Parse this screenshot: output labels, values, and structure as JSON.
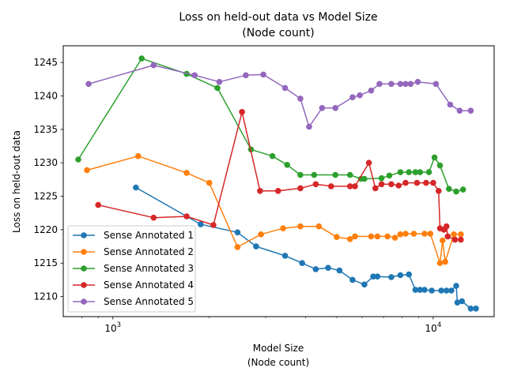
{
  "chart_data": {
    "type": "line",
    "title": "Loss on held-out data vs Model Size",
    "subtitle": "(Node count)",
    "xlabel": "Model Size",
    "xlabel_sub": "(Node count)",
    "ylabel": "Loss on held-out data",
    "xscale": "log",
    "xlim": [
      700,
      15500
    ],
    "ylim": [
      1207,
      1247.5
    ],
    "x_ticks": [
      {
        "value": 1000,
        "base": "10",
        "exp": "3"
      },
      {
        "value": 10000,
        "base": "10",
        "exp": "4"
      }
    ],
    "y_ticks": [
      1210,
      1215,
      1220,
      1225,
      1230,
      1235,
      1240,
      1245
    ],
    "grid": false,
    "legend_position": "lower-left",
    "series": [
      {
        "name": "Sense Annotated 1",
        "color": "#1f77b4",
        "x": [
          1180,
          1880,
          2450,
          2800,
          3450,
          3900,
          4300,
          4700,
          5100,
          5600,
          6100,
          6500,
          6700,
          7400,
          7900,
          8400,
          8800,
          9100,
          9400,
          9900,
          10600,
          11000,
          11400,
          11800,
          11900,
          12300,
          13100,
          13600
        ],
        "y": [
          1226.3,
          1220.8,
          1219.6,
          1217.5,
          1216.1,
          1215.0,
          1214.1,
          1214.3,
          1213.9,
          1212.5,
          1211.8,
          1213.0,
          1213.0,
          1212.9,
          1213.2,
          1213.3,
          1211.0,
          1211.0,
          1211.0,
          1210.9,
          1210.9,
          1210.9,
          1210.9,
          1211.6,
          1209.1,
          1209.3,
          1208.2,
          1208.2
        ]
      },
      {
        "name": "Sense Annotated 2",
        "color": "#ff7f0e",
        "x": [
          830,
          1200,
          1700,
          2000,
          2450,
          2900,
          3400,
          3850,
          4400,
          5000,
          5500,
          5700,
          6400,
          6700,
          7200,
          7600,
          7900,
          8200,
          8700,
          9400,
          9800,
          10500,
          10700,
          10900,
          11600,
          12200
        ],
        "y": [
          1228.9,
          1231.0,
          1228.5,
          1227.0,
          1217.4,
          1219.3,
          1220.2,
          1220.5,
          1220.5,
          1218.9,
          1218.6,
          1219.0,
          1219.0,
          1219.0,
          1219.0,
          1218.8,
          1219.3,
          1219.4,
          1219.4,
          1219.4,
          1219.4,
          1215.0,
          1218.4,
          1215.2,
          1219.3,
          1219.3
        ]
      },
      {
        "name": "Sense Annotated 3",
        "color": "#2ca02c",
        "x": [
          780,
          1230,
          1700,
          2120,
          2700,
          3150,
          3500,
          3850,
          4250,
          4950,
          5500,
          5950,
          6100,
          6900,
          7300,
          7900,
          8400,
          8800,
          9100,
          9700,
          10100,
          10500,
          11200,
          11800,
          12400
        ],
        "y": [
          1230.5,
          1245.6,
          1243.3,
          1241.2,
          1232.0,
          1231.0,
          1229.7,
          1228.2,
          1228.2,
          1228.2,
          1228.2,
          1227.6,
          1227.6,
          1227.7,
          1228.1,
          1228.6,
          1228.6,
          1228.6,
          1228.6,
          1228.6,
          1230.8,
          1229.6,
          1226.1,
          1225.7,
          1226.0
        ]
      },
      {
        "name": "Sense Annotated 4",
        "color": "#d62728",
        "x": [
          900,
          1340,
          1700,
          2060,
          2530,
          2880,
          3280,
          3850,
          4300,
          4800,
          5500,
          5700,
          6300,
          6600,
          6900,
          7400,
          7800,
          8200,
          8900,
          9500,
          10000,
          10400,
          10500,
          10800,
          11000,
          11100,
          11700,
          12200
        ],
        "y": [
          1223.7,
          1221.8,
          1222.0,
          1220.7,
          1237.6,
          1225.8,
          1225.8,
          1226.2,
          1226.8,
          1226.5,
          1226.5,
          1226.5,
          1230.0,
          1226.2,
          1226.8,
          1226.8,
          1226.6,
          1227.0,
          1227.0,
          1227.0,
          1227.0,
          1225.8,
          1220.2,
          1220.0,
          1220.5,
          1219.0,
          1218.5,
          1218.5
        ]
      },
      {
        "name": "Sense Annotated 5",
        "color": "#9467bd",
        "x": [
          840,
          1340,
          1800,
          2150,
          2600,
          2950,
          3450,
          3850,
          4100,
          4500,
          4950,
          5600,
          5900,
          6400,
          6800,
          7400,
          7900,
          8200,
          8500,
          8950,
          10200,
          11300,
          12100,
          13100
        ],
        "y": [
          1241.8,
          1244.6,
          1243.1,
          1242.1,
          1243.1,
          1243.2,
          1241.2,
          1239.6,
          1235.4,
          1238.2,
          1238.2,
          1239.8,
          1240.1,
          1240.8,
          1241.8,
          1241.8,
          1241.8,
          1241.8,
          1241.8,
          1242.1,
          1241.8,
          1238.7,
          1237.8,
          1237.8
        ]
      }
    ]
  }
}
